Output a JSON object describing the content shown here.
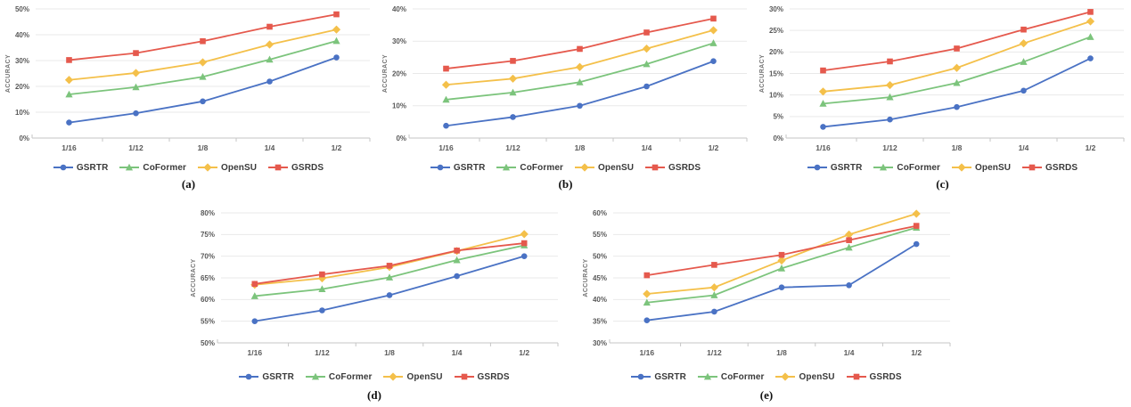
{
  "style": {
    "background": "#ffffff",
    "gridline_color": "#e9e9e9",
    "axis_color": "#c6c6c6",
    "tick_label_color": "#595959",
    "axis_title_color": "#757575",
    "legend_text_color": "#3a3a3a",
    "caption_color": "#111111"
  },
  "chart_data": [
    {
      "id": "a",
      "caption": "(a)",
      "type": "line",
      "categories": [
        "1/16",
        "1/12",
        "1/8",
        "1/4",
        "1/2"
      ],
      "xlabel": "",
      "ylabel": "ACCURACY",
      "ylim": [
        0,
        50
      ],
      "ystep": 10,
      "tick_suffix": "%",
      "grid": true,
      "legend_position": "bottom",
      "series": [
        {
          "name": "GSRTR",
          "color": "#4a72c4",
          "marker": "circle-marker",
          "values": [
            6.0,
            9.6,
            14.2,
            21.9,
            31.2
          ]
        },
        {
          "name": "CoFormer",
          "color": "#7cc47c",
          "marker": "triangle-marker",
          "values": [
            16.9,
            19.7,
            23.7,
            30.4,
            37.6
          ]
        },
        {
          "name": "OpenSU",
          "color": "#f4c04a",
          "marker": "diamond-marker",
          "values": [
            22.5,
            25.2,
            29.3,
            36.2,
            42.0
          ]
        },
        {
          "name": "GSRDS",
          "color": "#e5594d",
          "marker": "square-marker",
          "values": [
            30.2,
            32.9,
            37.5,
            43.1,
            47.9
          ]
        }
      ]
    },
    {
      "id": "b",
      "caption": "(b)",
      "type": "line",
      "categories": [
        "1/16",
        "1/12",
        "1/8",
        "1/4",
        "1/2"
      ],
      "xlabel": "",
      "ylabel": "ACCURACY",
      "ylim": [
        0,
        40
      ],
      "ystep": 10,
      "tick_suffix": "%",
      "grid": true,
      "legend_position": "bottom",
      "series": [
        {
          "name": "GSRTR",
          "color": "#4a72c4",
          "marker": "circle-marker",
          "values": [
            3.8,
            6.5,
            10.0,
            16.0,
            23.8
          ]
        },
        {
          "name": "CoFormer",
          "color": "#7cc47c",
          "marker": "triangle-marker",
          "values": [
            11.9,
            14.1,
            17.3,
            22.9,
            29.4
          ]
        },
        {
          "name": "OpenSU",
          "color": "#f4c04a",
          "marker": "diamond-marker",
          "values": [
            16.5,
            18.4,
            22.0,
            27.7,
            33.4
          ]
        },
        {
          "name": "GSRDS",
          "color": "#e5594d",
          "marker": "square-marker",
          "values": [
            21.5,
            23.9,
            27.6,
            32.7,
            37.0
          ]
        }
      ]
    },
    {
      "id": "c",
      "caption": "(c)",
      "type": "line",
      "categories": [
        "1/16",
        "1/12",
        "1/8",
        "1/4",
        "1/2"
      ],
      "xlabel": "",
      "ylabel": "ACCURACY",
      "ylim": [
        0,
        30
      ],
      "ystep": 5,
      "tick_suffix": "%",
      "grid": true,
      "legend_position": "bottom",
      "series": [
        {
          "name": "GSRTR",
          "color": "#4a72c4",
          "marker": "circle-marker",
          "values": [
            2.6,
            4.3,
            7.2,
            11.0,
            18.5
          ]
        },
        {
          "name": "CoFormer",
          "color": "#7cc47c",
          "marker": "triangle-marker",
          "values": [
            8.0,
            9.5,
            12.8,
            17.7,
            23.5
          ]
        },
        {
          "name": "OpenSU",
          "color": "#f4c04a",
          "marker": "diamond-marker",
          "values": [
            10.8,
            12.3,
            16.3,
            22.0,
            27.1
          ]
        },
        {
          "name": "GSRDS",
          "color": "#e5594d",
          "marker": "square-marker",
          "values": [
            15.7,
            17.8,
            20.8,
            25.2,
            29.3
          ]
        }
      ]
    },
    {
      "id": "d",
      "caption": "(d)",
      "type": "line",
      "categories": [
        "1/16",
        "1/12",
        "1/8",
        "1/4",
        "1/2"
      ],
      "xlabel": "",
      "ylabel": "ACCURACY",
      "ylim": [
        50,
        80
      ],
      "ystep": 5,
      "tick_suffix": "%",
      "grid": true,
      "legend_position": "bottom",
      "series": [
        {
          "name": "GSRTR",
          "color": "#4a72c4",
          "marker": "circle-marker",
          "values": [
            55.0,
            57.5,
            61.0,
            65.4,
            70.0
          ]
        },
        {
          "name": "CoFormer",
          "color": "#7cc47c",
          "marker": "triangle-marker",
          "values": [
            60.8,
            62.4,
            65.1,
            69.1,
            72.5
          ]
        },
        {
          "name": "OpenSU",
          "color": "#f4c04a",
          "marker": "diamond-marker",
          "values": [
            63.4,
            64.9,
            67.5,
            71.2,
            75.1
          ]
        },
        {
          "name": "GSRDS",
          "color": "#e5594d",
          "marker": "square-marker",
          "values": [
            63.6,
            65.8,
            67.8,
            71.3,
            73.0
          ]
        }
      ]
    },
    {
      "id": "e",
      "caption": "(e)",
      "type": "line",
      "categories": [
        "1/16",
        "1/12",
        "1/8",
        "1/4",
        "1/2"
      ],
      "xlabel": "",
      "ylabel": "ACCURACY",
      "ylim": [
        30,
        60
      ],
      "ystep": 5,
      "tick_suffix": "%",
      "grid": true,
      "legend_position": "bottom",
      "series": [
        {
          "name": "GSRTR",
          "color": "#4a72c4",
          "marker": "circle-marker",
          "values": [
            35.2,
            37.2,
            42.8,
            43.3,
            52.8
          ]
        },
        {
          "name": "CoFormer",
          "color": "#7cc47c",
          "marker": "triangle-marker",
          "values": [
            39.3,
            41.0,
            47.2,
            52.0,
            56.6
          ]
        },
        {
          "name": "OpenSU",
          "color": "#f4c04a",
          "marker": "diamond-marker",
          "values": [
            41.3,
            42.8,
            49.0,
            55.0,
            59.8
          ]
        },
        {
          "name": "GSRDS",
          "color": "#e5594d",
          "marker": "square-marker",
          "values": [
            45.6,
            48.0,
            50.3,
            53.7,
            57.0
          ]
        }
      ]
    }
  ]
}
